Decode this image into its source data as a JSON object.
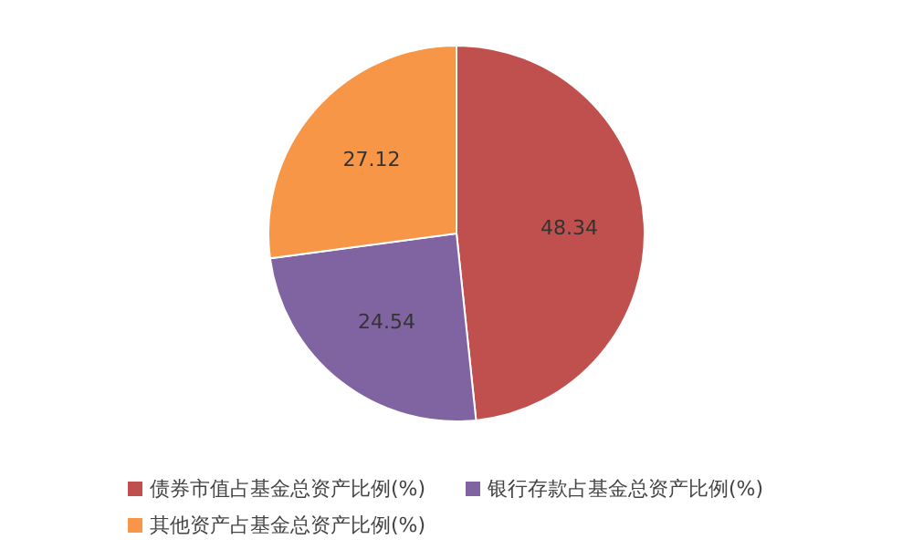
{
  "chart_data": {
    "type": "pie",
    "categories": [
      "债券市值占基金总资产比例(%)",
      "银行存款占基金总资产比例(%)",
      "其他资产占基金总资产比例(%)"
    ],
    "values": [
      48.34,
      24.54,
      27.12
    ],
    "colors": [
      "#c0504d",
      "#8064a2",
      "#f79646"
    ],
    "data_labels": true,
    "legend": "bottom"
  }
}
